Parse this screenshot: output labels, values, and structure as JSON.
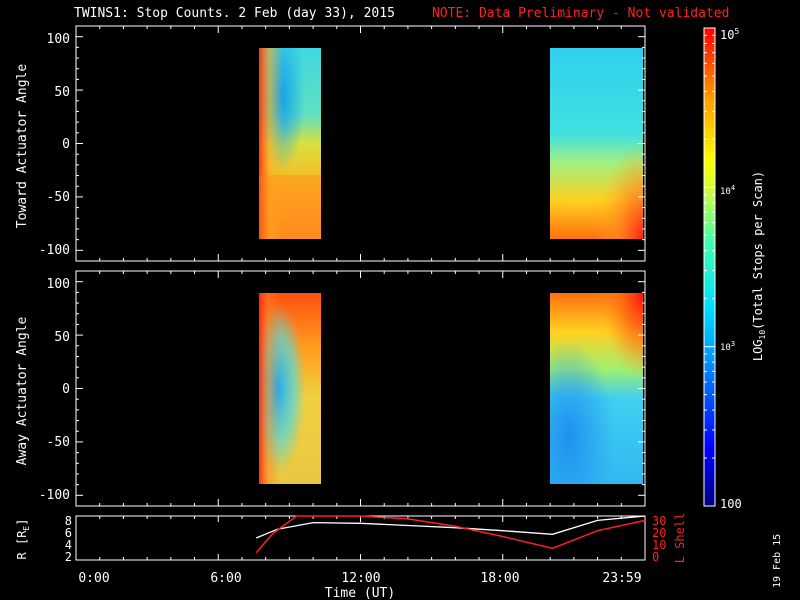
{
  "title": "TWINS1: Stop Counts.  2 Feb (day  33), 2015",
  "note": "NOTE: Data Preliminary - Not validated",
  "date_stamp": "19 Feb 15",
  "colors": {
    "background": "#000000",
    "axes": "#ffffff",
    "note": "#ff2020",
    "l_shell": "#ff2020",
    "r_trace": "#ffffff"
  },
  "chart_data": [
    {
      "type": "heatmap",
      "ylabel": "Toward Actuator Angle",
      "ylim": [
        -110,
        110
      ],
      "yticks": [
        "100",
        "50",
        "0",
        "-50",
        "-100"
      ],
      "xlim": [
        0,
        24
      ],
      "data_blocks": [
        {
          "x_start": 7.6,
          "x_end": 10.3,
          "y_range": [
            -88,
            90
          ],
          "description": "dense high counts near 7.6 UT, cyan core above 0 deg"
        },
        {
          "x_start": 20.1,
          "x_end": 24.0,
          "y_range": [
            -88,
            90
          ],
          "description": "cyan upper region, yellow-orange lower region, red near -80 deg"
        }
      ]
    },
    {
      "type": "heatmap",
      "ylabel": "Away Actuator Angle",
      "ylim": [
        -110,
        110
      ],
      "yticks": [
        "100",
        "50",
        "0",
        "-50",
        "-100"
      ],
      "xlim": [
        0,
        24
      ],
      "data_blocks": [
        {
          "x_start": 7.6,
          "x_end": 10.3,
          "y_range": [
            -88,
            90
          ],
          "description": "red-orange stripes, cyan core below 50 deg"
        },
        {
          "x_start": 20.1,
          "x_end": 24.0,
          "y_range": [
            -88,
            90
          ],
          "description": "yellow-orange upper region, cyan-blue lower region"
        }
      ]
    },
    {
      "type": "line",
      "ylabel": "R [R",
      "ylabel_sub": "E",
      "y2label": "L Shell",
      "ylim": [
        2,
        8
      ],
      "y2lim": [
        0,
        30
      ],
      "yticks": [
        "8",
        "6",
        "4",
        "2"
      ],
      "y2ticks": [
        "30",
        "20",
        "10",
        "0"
      ],
      "xlabel": "Time (UT)",
      "xticks": [
        "0:00",
        "6:00",
        "12:00",
        "18:00",
        "23:59"
      ],
      "xlim": [
        0,
        24
      ],
      "series": [
        {
          "x": [
            7.6,
            8.5,
            10.0,
            12.0,
            14.0,
            16.0,
            18.0,
            20.1,
            22.0,
            24.0
          ],
          "y": [
            5.0,
            6.2,
            7.1,
            7.0,
            6.7,
            6.4,
            6.0,
            5.5,
            7.4,
            8.0
          ]
        },
        {
          "x": [
            7.6,
            8.3,
            9.3,
            10.4,
            12.0,
            14.0,
            16.0,
            18.0,
            20.1,
            22.0,
            24.0
          ],
          "y": [
            5,
            18,
            33,
            33,
            32,
            28,
            23,
            16,
            8,
            20,
            27
          ]
        }
      ]
    }
  ],
  "colorbar": {
    "label": "LOG",
    "label_sub": "10",
    "label_rest": "(Total Stops per Scan)",
    "tick_labels": [
      "10",
      "10",
      "10",
      "100"
    ],
    "tick_exps": [
      "5",
      "4",
      "3",
      ""
    ],
    "range": [
      100,
      100000
    ],
    "scale": "log"
  }
}
